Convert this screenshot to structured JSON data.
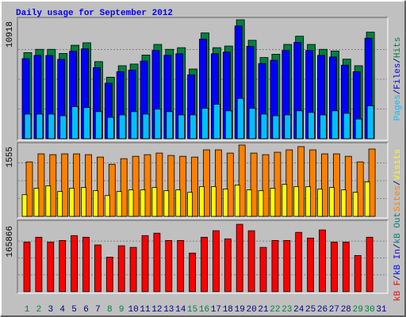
{
  "title": "Daily usage for September 2012",
  "separator": "/",
  "weekday_color": "#000080",
  "weekend_color": "#008040",
  "weekend_index": [
    0,
    1,
    7,
    8,
    14,
    15,
    21,
    22,
    28,
    29
  ],
  "categories": [
    "1",
    "2",
    "3",
    "4",
    "5",
    "6",
    "7",
    "8",
    "9",
    "10",
    "11",
    "12",
    "13",
    "14",
    "15",
    "16",
    "17",
    "18",
    "19",
    "20",
    "21",
    "22",
    "23",
    "24",
    "25",
    "26",
    "27",
    "28",
    "29",
    "30",
    "31"
  ],
  "chart_data": [
    {
      "type": "bar",
      "ylim": [
        0,
        10918
      ],
      "yticks": [
        10918
      ],
      "legend_order": [
        2,
        1,
        0
      ],
      "series": [
        {
          "name": "Hits",
          "color": "#008040",
          "values": [
            7906,
            8207,
            8207,
            7831,
            8584,
            8810,
            7078,
            5647,
            6701,
            6852,
            7680,
            8659,
            8207,
            8358,
            6400,
            9713,
            8358,
            8509,
            10918,
            9036,
            7454,
            7756,
            8659,
            9412,
            8659,
            8207,
            8057,
            7304,
            6701,
            9788,
            null
          ]
        },
        {
          "name": "Files",
          "color": "#0000ff",
          "values": [
            7350,
            7650,
            7640,
            7290,
            8030,
            8250,
            6530,
            5100,
            6150,
            6300,
            7130,
            8100,
            7660,
            7800,
            5860,
            9150,
            7800,
            7950,
            10350,
            8480,
            6900,
            7200,
            8100,
            8850,
            8100,
            7650,
            7500,
            6750,
            6150,
            9230,
            null
          ]
        },
        {
          "name": "Pages",
          "color": "#00c0ff",
          "values": [
            2259,
            2259,
            2259,
            2108,
            2937,
            2861,
            2485,
            1958,
            2184,
            2485,
            2259,
            2711,
            2485,
            2184,
            2184,
            2786,
            3162,
            2560,
            3690,
            2786,
            2259,
            2108,
            2184,
            2560,
            2409,
            2184,
            2560,
            2334,
            1807,
            3012,
            null
          ]
        }
      ]
    },
    {
      "type": "bar",
      "ylim": [
        0,
        1555
      ],
      "yticks": [
        1555
      ],
      "legend_order": [
        0,
        1
      ],
      "series": [
        {
          "name": "Sites",
          "color": "#ff8000",
          "values": [
            1188,
            1363,
            1345,
            1363,
            1363,
            1345,
            1293,
            1136,
            1258,
            1310,
            1345,
            1380,
            1328,
            1310,
            1293,
            1450,
            1450,
            1380,
            1555,
            1380,
            1345,
            1398,
            1450,
            1520,
            1450,
            1363,
            1363,
            1310,
            1188,
            1468,
            null
          ]
        },
        {
          "name": "Visits",
          "color": "#ffff00",
          "values": [
            472,
            612,
            664,
            542,
            612,
            629,
            559,
            454,
            542,
            577,
            577,
            629,
            559,
            577,
            524,
            647,
            647,
            594,
            682,
            577,
            559,
            612,
            699,
            647,
            647,
            594,
            629,
            577,
            524,
            752,
            null
          ]
        }
      ]
    },
    {
      "type": "bar",
      "ylim": [
        0,
        165866
      ],
      "yticks": [
        165866
      ],
      "legend_order": [
        0
      ],
      "series": [
        {
          "name": "kB F",
          "color": "#ff0000",
          "values": [
            122000,
            134000,
            122000,
            126000,
            138000,
            134000,
            115000,
            85000,
            113000,
            109000,
            138000,
            144000,
            126000,
            126000,
            95000,
            134000,
            150000,
            130000,
            165866,
            150000,
            109000,
            126000,
            126000,
            146000,
            132000,
            152000,
            122000,
            122000,
            89000,
            134000,
            null
          ]
        }
      ],
      "other_legend": [
        {
          "name": "kB In",
          "color": "#0000ff"
        },
        {
          "name": "kB Out",
          "color": "#008080"
        }
      ]
    }
  ]
}
